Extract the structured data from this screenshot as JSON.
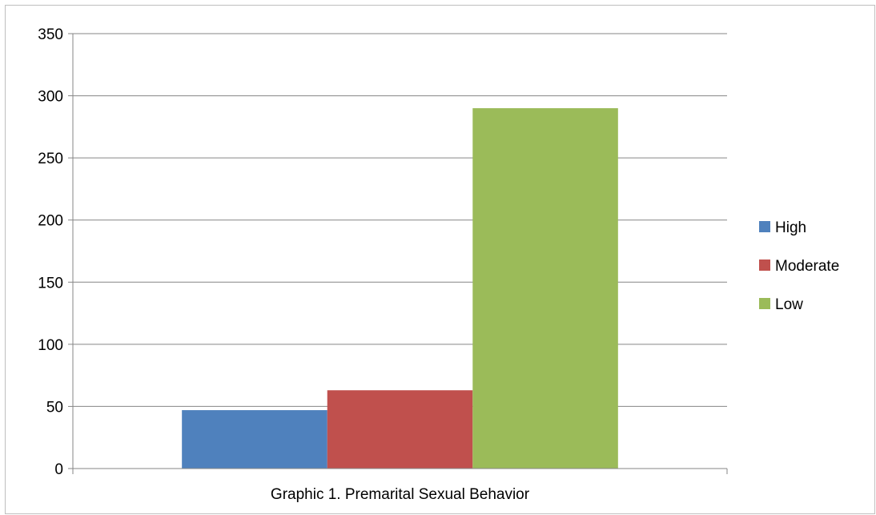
{
  "chart_data": {
    "type": "bar",
    "categories": [
      "Graphic 1. Premarital Sexual Behavior"
    ],
    "series": [
      {
        "name": "High",
        "values": [
          47
        ],
        "color": "#4f81bd"
      },
      {
        "name": "Moderate",
        "values": [
          63
        ],
        "color": "#c0504d"
      },
      {
        "name": "Low",
        "values": [
          290
        ],
        "color": "#9bbb59"
      }
    ],
    "title": "",
    "xlabel": "",
    "ylabel": "",
    "ylim": [
      0,
      350
    ],
    "yticks": [
      0,
      50,
      100,
      150,
      200,
      250,
      300,
      350
    ],
    "grid": true,
    "legend_position": "right"
  }
}
